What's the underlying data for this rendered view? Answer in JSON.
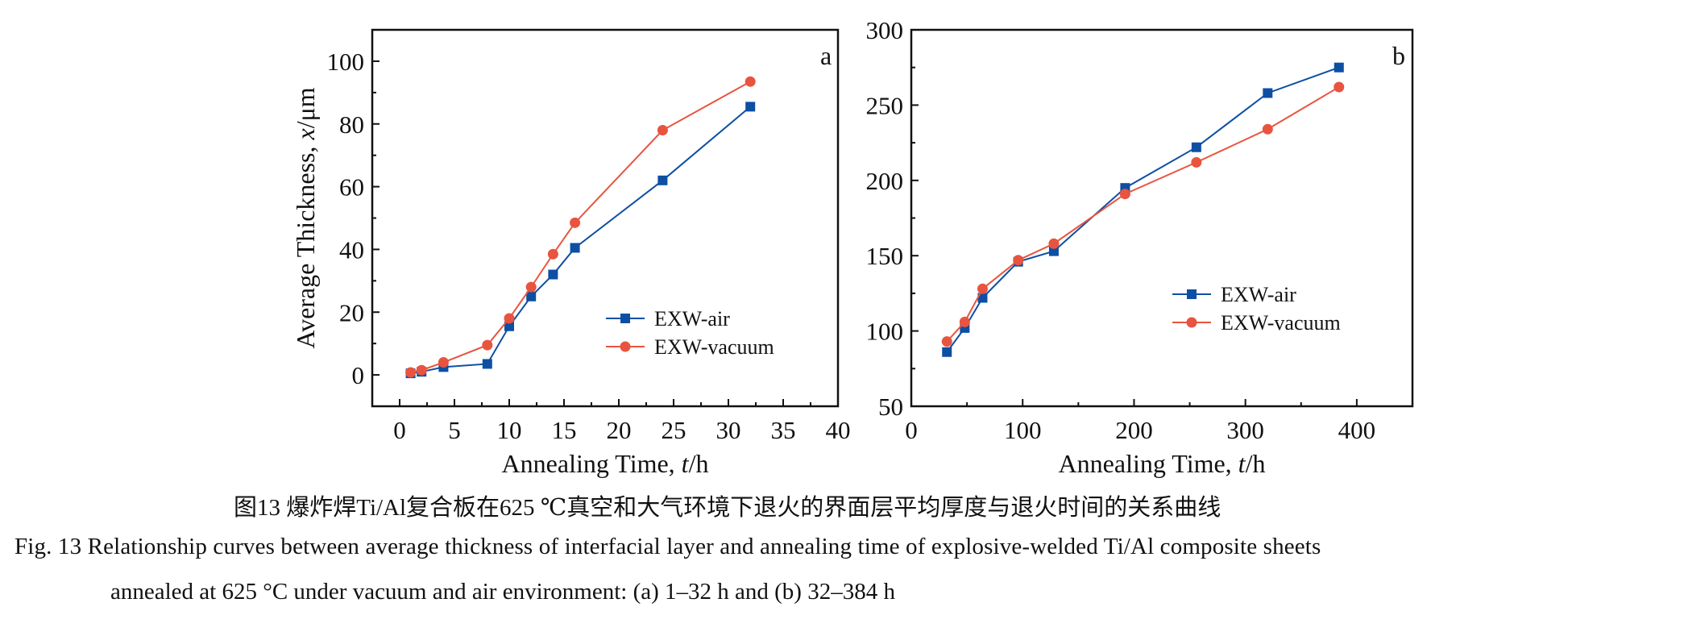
{
  "colors": {
    "air": "#0d4fa3",
    "vacuum": "#e8543f"
  },
  "chart_data": [
    {
      "type": "line",
      "panel_label": "a",
      "xlabel_main": "Annealing Time, ",
      "xlabel_var": "t",
      "xlabel_unit": "/h",
      "ylabel_main": "Average Thickness, ",
      "ylabel_var": "x",
      "ylabel_unit": "/μm",
      "xlim": [
        -2.5,
        40
      ],
      "ylim": [
        -10,
        110
      ],
      "xticks": [
        0,
        5,
        10,
        15,
        20,
        25,
        30,
        35,
        40
      ],
      "yticks": [
        0,
        20,
        40,
        60,
        80,
        100
      ],
      "legend_position": "lower-right",
      "grid": false,
      "series": [
        {
          "name": "EXW-air",
          "marker": "square",
          "x": [
            1,
            2,
            4,
            8,
            10,
            12,
            14,
            16,
            24,
            32
          ],
          "y": [
            0.5,
            1,
            2.5,
            3.5,
            15.5,
            25,
            32,
            40.5,
            62,
            85.5
          ]
        },
        {
          "name": "EXW-vacuum",
          "marker": "circle",
          "x": [
            1,
            2,
            4,
            8,
            10,
            12,
            14,
            16,
            24,
            32
          ],
          "y": [
            0.8,
            1.5,
            4,
            9.5,
            18,
            28,
            38.5,
            48.5,
            78,
            93.5
          ]
        }
      ]
    },
    {
      "type": "line",
      "panel_label": "b",
      "xlabel_main": "Annealing Time, ",
      "xlabel_var": "t",
      "xlabel_unit": "/h",
      "xlim": [
        0,
        450
      ],
      "ylim": [
        50,
        300
      ],
      "xticks": [
        0,
        100,
        200,
        300,
        400
      ],
      "yticks": [
        50,
        100,
        150,
        200,
        250,
        300
      ],
      "legend_position": "center-right",
      "grid": false,
      "series": [
        {
          "name": "EXW-air",
          "marker": "square",
          "x": [
            32,
            48,
            64,
            96,
            128,
            192,
            256,
            320,
            384
          ],
          "y": [
            86,
            102,
            122,
            146,
            153,
            195,
            222,
            258,
            275
          ]
        },
        {
          "name": "EXW-vacuum",
          "marker": "circle",
          "x": [
            32,
            48,
            64,
            96,
            128,
            192,
            256,
            320,
            384
          ],
          "y": [
            93,
            106,
            128,
            147,
            158,
            191,
            212,
            234,
            262
          ]
        }
      ]
    }
  ],
  "caption": {
    "cn": "图13  爆炸焊Ti/Al复合板在625 ℃真空和大气环境下退火的界面层平均厚度与退火时间的关系曲线",
    "en_line1": "Fig. 13  Relationship curves between average thickness of interfacial layer and annealing time of explosive-welded Ti/Al composite sheets",
    "en_line2": "annealed at 625 °C under vacuum and air environment: (a) 1–32 h and (b) 32–384 h"
  }
}
